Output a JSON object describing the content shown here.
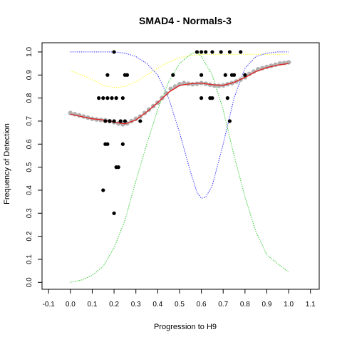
{
  "chart_data": {
    "type": "scatter",
    "title": "SMAD4 - Normals-3",
    "xlabel": "Progression to H9",
    "ylabel": "Frequency of Detection",
    "xlim": [
      -0.13,
      1.14
    ],
    "ylim": [
      -0.03,
      1.04
    ],
    "x_ticks": [
      "-0.1",
      "0.0",
      "0.1",
      "0.2",
      "0.3",
      "0.4",
      "0.5",
      "0.6",
      "0.7",
      "0.8",
      "0.9",
      "1.0",
      "1.1"
    ],
    "y_ticks": [
      "0.0",
      "0.1",
      "0.2",
      "0.3",
      "0.4",
      "0.5",
      "0.6",
      "0.7",
      "0.8",
      "0.9",
      "1.0"
    ],
    "grid": false,
    "series": [
      {
        "role": "observed points",
        "color": "#000000",
        "points": [
          [
            0.2,
            1.0
          ],
          [
            0.15,
            0.4
          ],
          [
            0.2,
            0.3
          ],
          [
            0.16,
            0.6
          ],
          [
            0.17,
            0.6
          ],
          [
            0.21,
            0.5
          ],
          [
            0.22,
            0.5
          ],
          [
            0.24,
            0.6
          ],
          [
            0.13,
            0.8
          ],
          [
            0.15,
            0.8
          ],
          [
            0.17,
            0.8
          ],
          [
            0.19,
            0.8
          ],
          [
            0.21,
            0.8
          ],
          [
            0.24,
            0.8
          ],
          [
            0.17,
            0.9
          ],
          [
            0.25,
            0.9
          ],
          [
            0.26,
            0.9
          ],
          [
            0.16,
            0.7
          ],
          [
            0.18,
            0.7
          ],
          [
            0.2,
            0.7
          ],
          [
            0.23,
            0.7
          ],
          [
            0.25,
            0.7
          ],
          [
            0.32,
            0.7
          ],
          [
            0.47,
            0.9
          ],
          [
            0.58,
            1.0
          ],
          [
            0.6,
            1.0
          ],
          [
            0.62,
            1.0
          ],
          [
            0.65,
            1.0
          ],
          [
            0.69,
            1.0
          ],
          [
            0.73,
            1.0
          ],
          [
            0.78,
            1.0
          ],
          [
            0.6,
            0.9
          ],
          [
            0.71,
            0.9
          ],
          [
            0.74,
            0.9
          ],
          [
            0.75,
            0.9
          ],
          [
            0.8,
            0.9
          ],
          [
            0.6,
            0.8
          ],
          [
            0.64,
            0.8
          ],
          [
            0.65,
            0.8
          ],
          [
            0.72,
            0.8
          ],
          [
            0.73,
            0.7
          ]
        ]
      },
      {
        "role": "smoothed points",
        "color": "#b0b0b0",
        "points": [
          [
            0.0,
            0.735
          ],
          [
            0.02,
            0.73
          ],
          [
            0.04,
            0.725
          ],
          [
            0.06,
            0.72
          ],
          [
            0.08,
            0.715
          ],
          [
            0.1,
            0.71
          ],
          [
            0.12,
            0.707
          ],
          [
            0.14,
            0.705
          ],
          [
            0.16,
            0.703
          ],
          [
            0.18,
            0.7
          ],
          [
            0.2,
            0.695
          ],
          [
            0.22,
            0.69
          ],
          [
            0.24,
            0.686
          ],
          [
            0.26,
            0.69
          ],
          [
            0.28,
            0.7
          ],
          [
            0.3,
            0.71
          ],
          [
            0.32,
            0.72
          ],
          [
            0.34,
            0.735
          ],
          [
            0.36,
            0.75
          ],
          [
            0.38,
            0.765
          ],
          [
            0.4,
            0.78
          ],
          [
            0.42,
            0.8
          ],
          [
            0.44,
            0.82
          ],
          [
            0.46,
            0.84
          ],
          [
            0.48,
            0.85
          ],
          [
            0.5,
            0.86
          ],
          [
            0.52,
            0.865
          ],
          [
            0.54,
            0.862
          ],
          [
            0.56,
            0.86
          ],
          [
            0.58,
            0.862
          ],
          [
            0.6,
            0.865
          ],
          [
            0.62,
            0.862
          ],
          [
            0.64,
            0.858
          ],
          [
            0.66,
            0.854
          ],
          [
            0.68,
            0.853
          ],
          [
            0.7,
            0.855
          ],
          [
            0.72,
            0.86
          ],
          [
            0.74,
            0.865
          ],
          [
            0.76,
            0.872
          ],
          [
            0.78,
            0.88
          ],
          [
            0.8,
            0.89
          ],
          [
            0.82,
            0.905
          ],
          [
            0.84,
            0.915
          ],
          [
            0.86,
            0.925
          ],
          [
            0.88,
            0.93
          ],
          [
            0.9,
            0.935
          ],
          [
            0.92,
            0.94
          ],
          [
            0.94,
            0.945
          ],
          [
            0.96,
            0.95
          ],
          [
            0.98,
            0.952
          ],
          [
            1.0,
            0.955
          ]
        ]
      },
      {
        "role": "fit curve",
        "color": "#e02020",
        "style": "solid",
        "points": [
          [
            0.0,
            0.73
          ],
          [
            0.05,
            0.72
          ],
          [
            0.1,
            0.71
          ],
          [
            0.15,
            0.705
          ],
          [
            0.2,
            0.695
          ],
          [
            0.25,
            0.688
          ],
          [
            0.3,
            0.705
          ],
          [
            0.35,
            0.74
          ],
          [
            0.4,
            0.78
          ],
          [
            0.45,
            0.825
          ],
          [
            0.5,
            0.855
          ],
          [
            0.55,
            0.862
          ],
          [
            0.6,
            0.865
          ],
          [
            0.65,
            0.858
          ],
          [
            0.7,
            0.855
          ],
          [
            0.75,
            0.868
          ],
          [
            0.8,
            0.89
          ],
          [
            0.85,
            0.915
          ],
          [
            0.9,
            0.932
          ],
          [
            0.95,
            0.943
          ],
          [
            1.0,
            0.95
          ]
        ]
      },
      {
        "role": "yellow curve",
        "color": "#ffff33",
        "style": "dotted",
        "points": [
          [
            0.0,
            0.92
          ],
          [
            0.05,
            0.9
          ],
          [
            0.1,
            0.88
          ],
          [
            0.15,
            0.855
          ],
          [
            0.2,
            0.845
          ],
          [
            0.25,
            0.85
          ],
          [
            0.3,
            0.87
          ],
          [
            0.35,
            0.9
          ],
          [
            0.4,
            0.93
          ],
          [
            0.45,
            0.955
          ],
          [
            0.5,
            0.975
          ],
          [
            0.55,
            0.985
          ],
          [
            0.6,
            0.99
          ],
          [
            0.65,
            0.99
          ],
          [
            0.7,
            0.99
          ],
          [
            0.75,
            0.99
          ],
          [
            0.8,
            0.99
          ],
          [
            0.85,
            0.99
          ],
          [
            0.9,
            0.99
          ],
          [
            0.95,
            0.99
          ],
          [
            1.0,
            0.99
          ]
        ]
      },
      {
        "role": "blue curve",
        "color": "#3333ff",
        "style": "dotted",
        "points": [
          [
            0.0,
            1.0
          ],
          [
            0.1,
            1.0
          ],
          [
            0.2,
            1.0
          ],
          [
            0.25,
            0.995
          ],
          [
            0.3,
            0.98
          ],
          [
            0.35,
            0.95
          ],
          [
            0.4,
            0.9
          ],
          [
            0.45,
            0.8
          ],
          [
            0.5,
            0.65
          ],
          [
            0.55,
            0.48
          ],
          [
            0.58,
            0.39
          ],
          [
            0.6,
            0.365
          ],
          [
            0.62,
            0.37
          ],
          [
            0.65,
            0.42
          ],
          [
            0.7,
            0.6
          ],
          [
            0.75,
            0.8
          ],
          [
            0.8,
            0.93
          ],
          [
            0.85,
            0.98
          ],
          [
            0.9,
            0.995
          ],
          [
            0.95,
            1.0
          ],
          [
            1.0,
            1.0
          ]
        ]
      },
      {
        "role": "green curve",
        "color": "#33cc33",
        "style": "dotted",
        "points": [
          [
            0.0,
            0.0
          ],
          [
            0.05,
            0.01
          ],
          [
            0.1,
            0.03
          ],
          [
            0.15,
            0.07
          ],
          [
            0.2,
            0.15
          ],
          [
            0.25,
            0.27
          ],
          [
            0.3,
            0.44
          ],
          [
            0.35,
            0.6
          ],
          [
            0.4,
            0.75
          ],
          [
            0.45,
            0.87
          ],
          [
            0.5,
            0.95
          ],
          [
            0.55,
            0.99
          ],
          [
            0.58,
            1.0
          ],
          [
            0.6,
            0.98
          ],
          [
            0.65,
            0.9
          ],
          [
            0.7,
            0.75
          ],
          [
            0.75,
            0.55
          ],
          [
            0.8,
            0.37
          ],
          [
            0.85,
            0.22
          ],
          [
            0.9,
            0.12
          ],
          [
            0.95,
            0.08
          ],
          [
            1.0,
            0.045
          ]
        ]
      }
    ]
  }
}
